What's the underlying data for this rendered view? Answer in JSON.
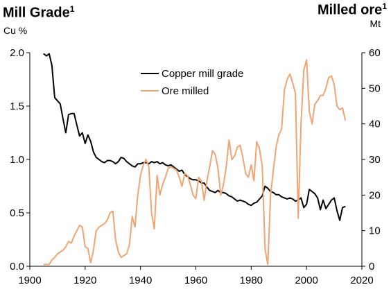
{
  "titles": {
    "left_title": "Mill Grade",
    "left_sup": "1",
    "left_unit": "Cu %",
    "right_title": "Milled ore",
    "right_sup": "1",
    "right_unit": "Mt"
  },
  "chart_data": {
    "type": "line",
    "xlim": [
      1900,
      2020
    ],
    "x_ticks": [
      "1900",
      "1920",
      "1940",
      "1960",
      "1980",
      "2000",
      "2020"
    ],
    "y_left": {
      "label": "Cu %",
      "lim": [
        0,
        2.0
      ],
      "ticks": [
        "0.0",
        "0.5",
        "1.0",
        "1.5",
        "2.0"
      ]
    },
    "y_right": {
      "label": "Mt",
      "lim": [
        0,
        60
      ],
      "ticks": [
        "0",
        "10",
        "20",
        "30",
        "40",
        "50",
        "60"
      ]
    },
    "grid": false,
    "legend_position": "upper-center",
    "series": [
      {
        "name": "Copper mill grade",
        "axis": "left",
        "color": "#000000",
        "x": [
          1905,
          1906,
          1907,
          1908,
          1909,
          1910,
          1911,
          1912,
          1913,
          1914,
          1915,
          1916,
          1917,
          1918,
          1919,
          1920,
          1921,
          1922,
          1923,
          1924,
          1925,
          1926,
          1927,
          1928,
          1929,
          1930,
          1931,
          1932,
          1933,
          1934,
          1935,
          1936,
          1937,
          1938,
          1939,
          1940,
          1941,
          1942,
          1943,
          1944,
          1945,
          1946,
          1947,
          1948,
          1949,
          1950,
          1951,
          1952,
          1953,
          1954,
          1955,
          1956,
          1957,
          1958,
          1959,
          1960,
          1961,
          1962,
          1963,
          1964,
          1965,
          1966,
          1967,
          1968,
          1969,
          1970,
          1971,
          1972,
          1973,
          1974,
          1975,
          1976,
          1977,
          1978,
          1979,
          1980,
          1981,
          1982,
          1983,
          1984,
          1985,
          1986,
          1987,
          1988,
          1989,
          1990,
          1991,
          1992,
          1993,
          1994,
          1995,
          1996,
          1997,
          1998,
          1999,
          2000,
          2001,
          2002,
          2003,
          2004,
          2005,
          2006,
          2007,
          2008,
          2009,
          2010,
          2011,
          2012,
          2013,
          2014
        ],
        "y": [
          1.99,
          1.97,
          1.99,
          1.88,
          1.58,
          1.55,
          1.52,
          1.38,
          1.25,
          1.42,
          1.43,
          1.43,
          1.32,
          1.22,
          1.25,
          1.15,
          1.23,
          1.17,
          1.07,
          1.02,
          1.0,
          0.98,
          0.97,
          0.99,
          0.99,
          0.98,
          0.96,
          0.98,
          1.02,
          1.01,
          0.98,
          0.96,
          0.94,
          0.93,
          0.96,
          0.96,
          0.97,
          0.97,
          0.96,
          0.98,
          0.97,
          0.98,
          0.96,
          0.97,
          0.95,
          0.94,
          0.95,
          0.93,
          0.91,
          0.89,
          0.9,
          0.86,
          0.84,
          0.82,
          0.81,
          0.81,
          0.8,
          0.78,
          0.78,
          0.74,
          0.71,
          0.7,
          0.69,
          0.71,
          0.69,
          0.69,
          0.68,
          0.66,
          0.65,
          0.63,
          0.61,
          0.62,
          0.61,
          0.6,
          0.58,
          0.57,
          0.59,
          0.6,
          0.63,
          0.66,
          0.75,
          0.73,
          0.7,
          0.69,
          0.67,
          0.67,
          0.65,
          0.64,
          0.63,
          0.64,
          0.63,
          0.61,
          0.62,
          0.64,
          0.55,
          0.58,
          0.72,
          0.7,
          0.68,
          0.64,
          0.53,
          0.62,
          0.54,
          0.58,
          0.62,
          0.64,
          0.52,
          0.43,
          0.55,
          0.56
        ]
      },
      {
        "name": "Ore milled",
        "axis": "right",
        "color": "#F2A470",
        "x": [
          1905,
          1906,
          1907,
          1908,
          1909,
          1910,
          1911,
          1912,
          1913,
          1914,
          1915,
          1916,
          1917,
          1918,
          1919,
          1920,
          1921,
          1922,
          1923,
          1924,
          1925,
          1926,
          1927,
          1928,
          1929,
          1930,
          1931,
          1932,
          1933,
          1934,
          1935,
          1936,
          1937,
          1938,
          1939,
          1940,
          1941,
          1942,
          1943,
          1944,
          1945,
          1946,
          1947,
          1948,
          1949,
          1950,
          1951,
          1952,
          1953,
          1954,
          1955,
          1956,
          1957,
          1958,
          1959,
          1960,
          1961,
          1962,
          1963,
          1964,
          1965,
          1966,
          1967,
          1968,
          1969,
          1970,
          1971,
          1972,
          1973,
          1974,
          1975,
          1976,
          1977,
          1978,
          1979,
          1980,
          1981,
          1982,
          1983,
          1984,
          1985,
          1986,
          1987,
          1988,
          1989,
          1990,
          1991,
          1992,
          1993,
          1994,
          1995,
          1996,
          1997,
          1998,
          1999,
          2000,
          2001,
          2002,
          2003,
          2004,
          2005,
          2006,
          2007,
          2008,
          2009,
          2010,
          2011,
          2012,
          2013,
          2014
        ],
        "y": [
          0.5,
          0.5,
          0.5,
          1.8,
          2.5,
          3.5,
          4.0,
          4.5,
          5.5,
          7.0,
          6.5,
          8.5,
          10.0,
          11.5,
          11.0,
          5.5,
          5.0,
          1.0,
          4.5,
          10.0,
          11.0,
          11.5,
          12.0,
          13.0,
          15.0,
          15.5,
          7.5,
          4.0,
          2.5,
          3.0,
          3.5,
          6.0,
          14.0,
          11.0,
          20.0,
          25.5,
          28.5,
          30.0,
          28.0,
          15.0,
          10.5,
          25.5,
          20.0,
          23.0,
          25.0,
          27.5,
          28.0,
          27.5,
          27.0,
          25.0,
          22.5,
          26.0,
          25.5,
          23.0,
          20.0,
          19.0,
          25.0,
          24.0,
          18.5,
          24.0,
          28.0,
          32.5,
          31.5,
          27.5,
          20.0,
          23.0,
          28.0,
          35.5,
          30.0,
          31.0,
          33.5,
          34.0,
          30.5,
          26.0,
          25.0,
          28.5,
          24.0,
          35.0,
          33.0,
          28.0,
          5.0,
          0.5,
          20.0,
          27.0,
          33.5,
          37.0,
          38.5,
          49.5,
          52.5,
          54.0,
          51.5,
          48.5,
          13.5,
          40.0,
          55.0,
          58.0,
          43.5,
          40.0,
          45.5,
          46.5,
          48.0,
          48.0,
          50.0,
          53.0,
          53.5,
          51.0,
          45.0,
          44.0,
          44.5,
          41.0
        ]
      }
    ]
  }
}
